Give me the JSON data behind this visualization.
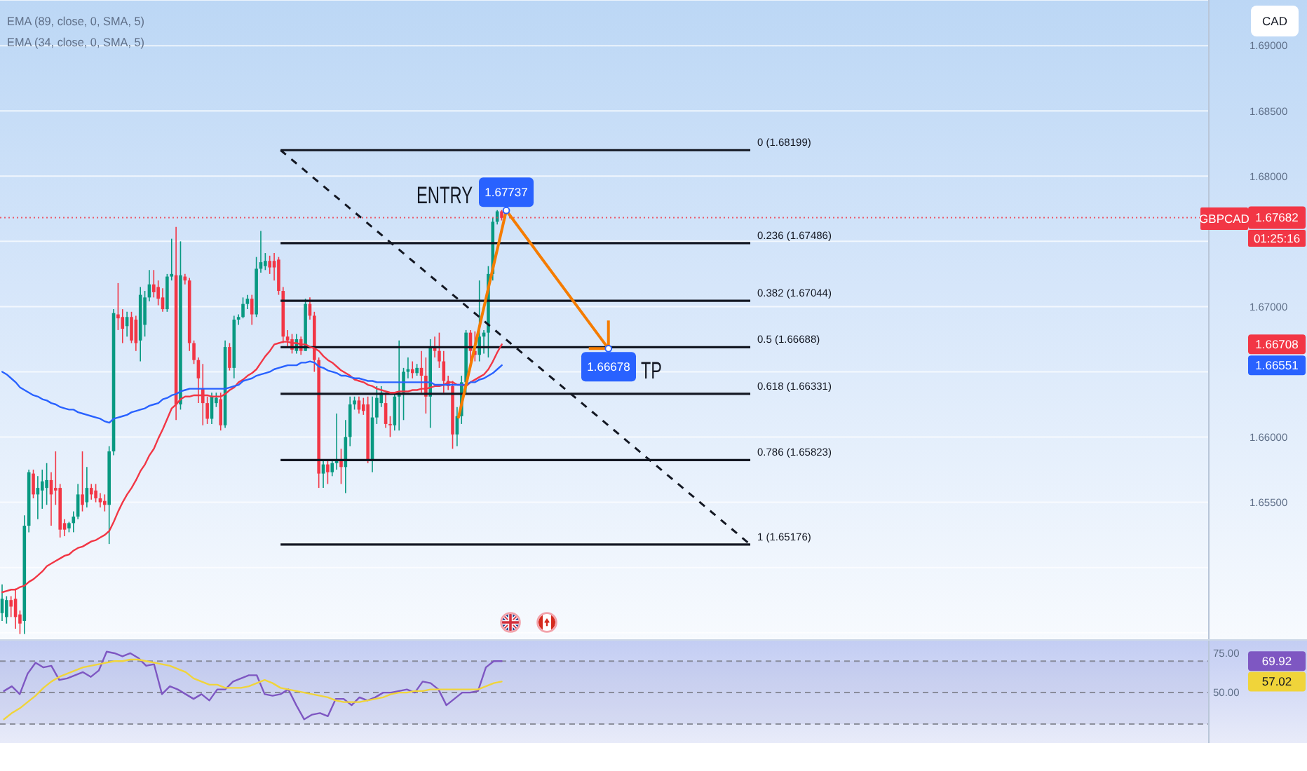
{
  "chart_data": [
    {
      "type": "candlestick",
      "categories": [
        null,
        null,
        null,
        null,
        null,
        null,
        null,
        null,
        null,
        null,
        null,
        null,
        null,
        null,
        null,
        null,
        null,
        null,
        null,
        null,
        null,
        null,
        null,
        null,
        null,
        null,
        null,
        null,
        null,
        null,
        null,
        null,
        null,
        null,
        null,
        null,
        null,
        null,
        null,
        null,
        null,
        null,
        null,
        null,
        null,
        null,
        null,
        null,
        null,
        null,
        null,
        null,
        null,
        null,
        null,
        null,
        null,
        null,
        null,
        null,
        null,
        null,
        null,
        null,
        null,
        null,
        null,
        null,
        null,
        null,
        null,
        null,
        null,
        null,
        null,
        null,
        null,
        null,
        null,
        null,
        null,
        null,
        null,
        null,
        null,
        null,
        null,
        null,
        null,
        null,
        null,
        null,
        null,
        null,
        null,
        null,
        null,
        null,
        null,
        null,
        null,
        null,
        null,
        null,
        null,
        null,
        null,
        null,
        null,
        null,
        null,
        null,
        null,
        null,
        null,
        null,
        null,
        null,
        null,
        null,
        null,
        null,
        null,
        null,
        null,
        null,
        null,
        null,
        null,
        null,
        null,
        null,
        null,
        null,
        null,
        null,
        null,
        null,
        null,
        null,
        null,
        null,
        null,
        null,
        null,
        null,
        null,
        null,
        null,
        null,
        null,
        null,
        null,
        null,
        null,
        null,
        null,
        null,
        null,
        null,
        null,
        null,
        null,
        null,
        null,
        null,
        null,
        null,
        null,
        null,
        null,
        null,
        null,
        null,
        null,
        null,
        null,
        null,
        null,
        null,
        null,
        null,
        null,
        null,
        null,
        null,
        null,
        null,
        null,
        null,
        null,
        null,
        null,
        null,
        null,
        null,
        null,
        null,
        null,
        null,
        null,
        null,
        null,
        null,
        null,
        null,
        null,
        null,
        null,
        null,
        null,
        null,
        null,
        null,
        null,
        null,
        null,
        null,
        null,
        null,
        null,
        null,
        null,
        null,
        null,
        null,
        null,
        null,
        null,
        null,
        null,
        null,
        null,
        null,
        null,
        null,
        null,
        null,
        null,
        null,
        null,
        null,
        null,
        null,
        null,
        null,
        null,
        null,
        null,
        null,
        null,
        null,
        null,
        null,
        null,
        null,
        null,
        null,
        null,
        null,
        null,
        null,
        null,
        null,
        null,
        null,
        null,
        null,
        null,
        null,
        null
      ],
      "ohlc": [
        [
          1.6465,
          1.6487,
          1.6459,
          1.6476
        ],
        [
          1.6462,
          1.6478,
          1.6457,
          1.6475
        ],
        [
          1.6475,
          1.6478,
          1.6462,
          1.647
        ],
        [
          1.6476,
          1.6484,
          1.6453,
          1.6462
        ],
        [
          1.6464,
          1.6467,
          1.6449,
          1.6457
        ],
        [
          1.6459,
          1.654,
          1.6449,
          1.6532
        ],
        [
          1.6532,
          1.6575,
          1.6527,
          1.6573
        ],
        [
          1.6572,
          1.6575,
          1.6553,
          1.6556
        ],
        [
          1.6556,
          1.657,
          1.6537,
          1.6561
        ],
        [
          1.6559,
          1.6575,
          1.6545,
          1.6566
        ],
        [
          1.6561,
          1.658,
          1.6548,
          1.6567
        ],
        [
          1.6567,
          1.6573,
          1.6532,
          1.6556
        ],
        [
          1.6561,
          1.6589,
          1.6548,
          1.6559
        ],
        [
          1.6561,
          1.6564,
          1.6523,
          1.6529
        ],
        [
          1.6534,
          1.6537,
          1.6524,
          1.6529
        ],
        [
          1.653,
          1.6535,
          1.6527,
          1.6534
        ],
        [
          1.6534,
          1.6543,
          1.6527,
          1.6539
        ],
        [
          1.6539,
          1.6564,
          1.6537,
          1.6556
        ],
        [
          1.6556,
          1.6589,
          1.6543,
          1.6548
        ],
        [
          1.655,
          1.6577,
          1.6546,
          1.6561
        ],
        [
          1.6561,
          1.6564,
          1.6552,
          1.6556
        ],
        [
          1.6559,
          1.6564,
          1.655,
          1.6553
        ],
        [
          1.6553,
          1.6557,
          1.6546,
          1.655
        ],
        [
          1.6551,
          1.6556,
          1.6543,
          1.6548
        ],
        [
          1.6548,
          1.6593,
          1.6518,
          1.6589
        ],
        [
          1.6589,
          1.6698,
          1.6586,
          1.6695
        ],
        [
          1.6694,
          1.6718,
          1.6682,
          1.6691
        ],
        [
          1.6692,
          1.6698,
          1.6672,
          1.6683
        ],
        [
          1.6685,
          1.6696,
          1.6677,
          1.6692
        ],
        [
          1.6692,
          1.6696,
          1.6672,
          1.6674
        ],
        [
          1.669,
          1.6693,
          1.6666,
          1.6672
        ],
        [
          1.6674,
          1.6715,
          1.6658,
          1.6709
        ],
        [
          1.6686,
          1.6712,
          1.6677,
          1.6707
        ],
        [
          1.6707,
          1.6728,
          1.6704,
          1.6717
        ],
        [
          1.6717,
          1.6728,
          1.6707,
          1.6711
        ],
        [
          1.6715,
          1.672,
          1.6701,
          1.6706
        ],
        [
          1.6707,
          1.6714,
          1.6696,
          1.6698
        ],
        [
          1.6698,
          1.6725,
          1.6696,
          1.6723
        ],
        [
          1.6723,
          1.6752,
          1.672,
          1.6725
        ],
        [
          1.6724,
          1.6761,
          1.6613,
          1.6625
        ],
        [
          1.6625,
          1.675,
          1.6621,
          1.6724
        ],
        [
          1.6723,
          1.6725,
          1.6717,
          1.672
        ],
        [
          1.672,
          1.6722,
          1.6666,
          1.6672
        ],
        [
          1.6672,
          1.6674,
          1.6656,
          1.6659
        ],
        [
          1.6659,
          1.6661,
          1.6626,
          1.6645
        ],
        [
          1.6637,
          1.6656,
          1.6609,
          1.6626
        ],
        [
          1.6626,
          1.6631,
          1.661,
          1.6614
        ],
        [
          1.6614,
          1.6634,
          1.661,
          1.6631
        ],
        [
          1.6626,
          1.6634,
          1.6623,
          1.663
        ],
        [
          1.6629,
          1.6634,
          1.6605,
          1.6609
        ],
        [
          1.6609,
          1.6674,
          1.6607,
          1.6669
        ],
        [
          1.6669,
          1.6672,
          1.6651,
          1.6653
        ],
        [
          1.6653,
          1.6693,
          1.6645,
          1.669
        ],
        [
          1.669,
          1.6694,
          1.6686,
          1.6692
        ],
        [
          1.6692,
          1.6707,
          1.6691,
          1.6702
        ],
        [
          1.6702,
          1.6709,
          1.6698,
          1.6706
        ],
        [
          1.6706,
          1.6709,
          1.6686,
          1.6694
        ],
        [
          1.6694,
          1.6738,
          1.6692,
          1.6729
        ],
        [
          1.6729,
          1.6758,
          1.6726,
          1.6734
        ],
        [
          1.6731,
          1.6741,
          1.6728,
          1.6735
        ],
        [
          1.6735,
          1.6739,
          1.6725,
          1.673
        ],
        [
          1.6735,
          1.6741,
          1.672,
          1.673
        ],
        [
          1.6736,
          1.6738,
          1.6709,
          1.6712
        ],
        [
          1.6712,
          1.6715,
          1.6672,
          1.6677
        ],
        [
          1.6677,
          1.6682,
          1.6669,
          1.6674
        ],
        [
          1.6675,
          1.6679,
          1.6664,
          1.6667
        ],
        [
          1.6666,
          1.6679,
          1.6664,
          1.6675
        ],
        [
          1.6675,
          1.6677,
          1.6663,
          1.6666
        ],
        [
          1.6666,
          1.6706,
          1.6666,
          1.6702
        ],
        [
          1.6702,
          1.6707,
          1.669,
          1.6693
        ],
        [
          1.6693,
          1.6696,
          1.665,
          1.6659
        ],
        [
          1.6659,
          1.6661,
          1.6561,
          1.6572
        ],
        [
          1.6572,
          1.6583,
          1.6561,
          1.6579
        ],
        [
          1.6579,
          1.6582,
          1.6564,
          1.6573
        ],
        [
          1.6573,
          1.6582,
          1.657,
          1.658
        ],
        [
          1.658,
          1.6618,
          1.6575,
          1.6583
        ],
        [
          1.6582,
          1.6591,
          1.6564,
          1.6577
        ],
        [
          1.6577,
          1.6613,
          1.6557,
          1.66
        ],
        [
          1.66,
          1.6631,
          1.6593,
          1.6625
        ],
        [
          1.6625,
          1.6631,
          1.6621,
          1.6628
        ],
        [
          1.6628,
          1.6631,
          1.6618,
          1.6621
        ],
        [
          1.6625,
          1.663,
          1.6617,
          1.662
        ],
        [
          1.6625,
          1.6631,
          1.658,
          1.6582
        ],
        [
          1.6582,
          1.6631,
          1.6573,
          1.6615
        ],
        [
          1.6615,
          1.6639,
          1.661,
          1.663
        ],
        [
          1.6626,
          1.6639,
          1.6623,
          1.6634
        ],
        [
          1.6626,
          1.6634,
          1.6607,
          1.661
        ],
        [
          1.661,
          1.6616,
          1.66,
          1.6609
        ],
        [
          1.6609,
          1.6634,
          1.6605,
          1.6631
        ],
        [
          1.6631,
          1.6674,
          1.6605,
          1.6634
        ],
        [
          1.6634,
          1.6653,
          1.6613,
          1.665
        ],
        [
          1.665,
          1.6661,
          1.6645,
          1.6652
        ],
        [
          1.6652,
          1.6658,
          1.6645,
          1.6649
        ],
        [
          1.6649,
          1.6656,
          1.6647,
          1.6653
        ],
        [
          1.6653,
          1.6666,
          1.6634,
          1.6647
        ],
        [
          1.6647,
          1.6661,
          1.6618,
          1.6631
        ],
        [
          1.6631,
          1.6675,
          1.6607,
          1.6669
        ],
        [
          1.6669,
          1.6677,
          1.6661,
          1.6666
        ],
        [
          1.6666,
          1.668,
          1.6653,
          1.6658
        ],
        [
          1.6658,
          1.6666,
          1.6634,
          1.6643
        ],
        [
          1.6643,
          1.6647,
          1.6636,
          1.6639
        ],
        [
          1.6639,
          1.6643,
          1.6591,
          1.6602
        ],
        [
          1.6602,
          1.6623,
          1.6593,
          1.6616
        ],
        [
          1.6616,
          1.6647,
          1.661,
          1.6642
        ],
        [
          1.6642,
          1.6682,
          1.6634,
          1.668
        ],
        [
          1.668,
          1.6682,
          1.6658,
          1.6666
        ],
        [
          1.6666,
          1.6681,
          1.6658,
          1.6663
        ],
        [
          1.6663,
          1.672,
          1.6658,
          1.6677
        ],
        [
          1.6677,
          1.6682,
          1.6664,
          1.668
        ],
        [
          1.668,
          1.6731,
          1.6661,
          1.6725
        ],
        [
          1.6725,
          1.6768,
          1.672,
          1.6765
        ],
        [
          1.6765,
          1.6774,
          1.6763,
          1.6773
        ],
        [
          1.6773,
          1.6774,
          1.6766,
          1.6768
        ],
        null,
        null,
        null,
        null,
        null,
        null,
        null,
        null,
        null,
        null,
        null,
        null,
        null,
        null,
        null,
        null,
        null,
        null,
        null,
        null,
        null,
        null,
        null,
        null,
        null,
        null,
        null,
        null,
        null,
        null,
        null,
        null,
        null,
        null,
        null,
        null,
        null,
        null,
        null,
        null,
        null,
        null,
        null,
        null,
        null,
        null,
        null,
        null,
        null,
        null,
        null,
        null,
        null,
        null,
        null,
        null,
        null,
        null,
        null,
        null,
        null,
        null,
        null,
        null,
        null,
        null,
        null,
        null,
        null,
        null,
        null,
        null,
        null,
        null,
        null,
        null,
        null,
        null,
        null,
        null,
        null,
        null,
        null,
        null,
        null,
        null,
        null,
        null,
        null,
        null,
        null,
        null,
        null,
        null,
        null,
        null,
        null,
        null,
        null,
        null,
        null,
        null,
        null,
        null,
        null,
        null,
        null,
        null,
        null,
        null,
        null,
        null,
        null,
        null,
        null,
        null,
        null,
        null,
        null,
        null,
        null,
        null,
        null,
        null,
        null,
        null,
        null,
        null,
        null,
        null,
        null,
        null,
        null,
        null,
        null,
        null,
        null,
        null,
        null,
        null,
        null,
        null,
        null,
        null,
        null,
        null,
        null,
        null,
        null,
        null,
        null,
        null,
        null,
        null,
        null,
        null,
        null,
        null
      ],
      "series": [
        {
          "type": "line",
          "color": "#f23645",
          "values": [
            1.6481,
            1.6482,
            1.6483,
            1.6483,
            1.6485,
            1.6486,
            1.6489,
            1.6491,
            1.6494,
            1.6497,
            1.6501,
            1.6503,
            1.6505,
            1.6507,
            1.6509,
            1.651,
            1.6513,
            1.6515,
            1.6516,
            1.6518,
            1.652,
            1.6521,
            1.6523,
            1.6525,
            1.6528,
            1.6535,
            1.6543,
            1.655,
            1.6556,
            1.6561,
            1.6567,
            1.6574,
            1.6579,
            1.6586,
            1.6591,
            1.6599,
            1.6606,
            1.6614,
            1.6622,
            1.6625,
            1.6629,
            1.6631,
            1.6631,
            1.6632,
            1.6632,
            1.6632,
            1.6632,
            1.6631,
            1.6631,
            1.6631,
            1.6633,
            1.6636,
            1.6638,
            1.6642,
            1.6644,
            1.6647,
            1.6649,
            1.6652,
            1.6657,
            1.6662,
            1.6666,
            1.6671,
            1.6672,
            1.6673,
            1.6673,
            1.6672,
            1.6672,
            1.6671,
            1.6671,
            1.6669,
            1.6668,
            1.6666,
            1.6662,
            1.6659,
            1.6657,
            1.6654,
            1.6651,
            1.6649,
            1.6647,
            1.6644,
            1.6643,
            1.6642,
            1.664,
            1.6639,
            1.6637,
            1.6636,
            1.6635,
            1.6634,
            1.6634,
            1.6635,
            1.6635,
            1.6635,
            1.6636,
            1.6636,
            1.6637,
            1.6637,
            1.6638,
            1.6639,
            1.6639,
            1.664,
            1.6642,
            1.6642,
            1.664,
            1.664,
            1.6639,
            1.6642,
            1.6644,
            1.6646,
            1.6648,
            1.6652,
            1.6658,
            1.6665,
            1.6671,
            null,
            null,
            null,
            null,
            null,
            null,
            null,
            null,
            null,
            null,
            null,
            null,
            null,
            null,
            null,
            null,
            null,
            null,
            null,
            null,
            null,
            null,
            null,
            null,
            null,
            null,
            null,
            null,
            null,
            null,
            null,
            null,
            null,
            null,
            null,
            null,
            null,
            null,
            null,
            null,
            null,
            null,
            null,
            null,
            null,
            null,
            null,
            null,
            null,
            null,
            null,
            null,
            null,
            null,
            null,
            null,
            null,
            null,
            null,
            null,
            null,
            null,
            null,
            null,
            null,
            null,
            null,
            null,
            null,
            null,
            null,
            null,
            null,
            null,
            null,
            null,
            null,
            null,
            null,
            null,
            null,
            null,
            null,
            null,
            null,
            null,
            null,
            null,
            null,
            null,
            null,
            null,
            null,
            null,
            null,
            null,
            null,
            null,
            null,
            null,
            null,
            null,
            null,
            null,
            null,
            null,
            null,
            null,
            null,
            null,
            null,
            null,
            null,
            null,
            null,
            null,
            null,
            null,
            null,
            null,
            null,
            null,
            null,
            null,
            null,
            null,
            null,
            null,
            null,
            null,
            null,
            null,
            null,
            null,
            null,
            null,
            null,
            null,
            null,
            null,
            null,
            null,
            null,
            null,
            null,
            null,
            null,
            null,
            null,
            null,
            null,
            null,
            null,
            null,
            null,
            null,
            null,
            null
          ]
        },
        {
          "type": "line",
          "color": "#2962ff",
          "values": [
            1.665,
            1.6648,
            1.6645,
            1.6642,
            1.6638,
            1.6636,
            1.6634,
            1.6632,
            1.6631,
            1.6629,
            1.6628,
            1.6626,
            1.6625,
            1.6623,
            1.6622,
            1.6621,
            1.6621,
            1.6619,
            1.6618,
            1.6617,
            1.6616,
            1.6615,
            1.6614,
            1.6612,
            1.6611,
            1.6614,
            1.6615,
            1.6616,
            1.6617,
            1.6619,
            1.662,
            1.6621,
            1.6622,
            1.6624,
            1.6625,
            1.6626,
            1.6629,
            1.663,
            1.6632,
            1.6633,
            1.6635,
            1.6636,
            1.6637,
            1.6637,
            1.6637,
            1.6637,
            1.6637,
            1.6637,
            1.6637,
            1.6637,
            1.6637,
            1.6638,
            1.6639,
            1.664,
            1.6643,
            1.6644,
            1.6645,
            1.6647,
            1.6648,
            1.6649,
            1.665,
            1.6652,
            1.6653,
            1.6654,
            1.6655,
            1.6655,
            1.6655,
            1.6657,
            1.6657,
            1.6658,
            1.6657,
            1.6654,
            1.6653,
            1.6651,
            1.665,
            1.6649,
            1.6647,
            1.6647,
            1.6646,
            1.6645,
            1.6645,
            1.6644,
            1.6643,
            1.6643,
            1.6642,
            1.6642,
            1.6642,
            1.6642,
            1.6642,
            1.6642,
            1.6642,
            1.6642,
            1.6642,
            1.6642,
            1.6642,
            1.6642,
            1.6642,
            1.664,
            1.664,
            1.664,
            1.664,
            1.664,
            1.664,
            1.664,
            1.664,
            1.6642,
            1.6642,
            1.6644,
            1.6645,
            1.6647,
            1.6649,
            1.6652,
            1.6655,
            null,
            null,
            null,
            null,
            null,
            null,
            null,
            null,
            null,
            null,
            null,
            null,
            null,
            null,
            null,
            null,
            null,
            null,
            null,
            null,
            null,
            null,
            null,
            null,
            null,
            null,
            null,
            null,
            null,
            null,
            null,
            null,
            null,
            null,
            null,
            null,
            null,
            null,
            null,
            null,
            null,
            null,
            null,
            null,
            null,
            null,
            null,
            null,
            null,
            null,
            null,
            null,
            null,
            null,
            null,
            null,
            null,
            null,
            null,
            null,
            null,
            null,
            null,
            null,
            null,
            null,
            null,
            null,
            null,
            null,
            null,
            null,
            null,
            null,
            null,
            null,
            null,
            null,
            null,
            null,
            null,
            null,
            null,
            null,
            null,
            null,
            null,
            null,
            null,
            null,
            null,
            null,
            null,
            null,
            null,
            null,
            null,
            null,
            null,
            null,
            null,
            null,
            null,
            null,
            null,
            null,
            null,
            null,
            null,
            null,
            null,
            null,
            null,
            null,
            null,
            null,
            null,
            null,
            null,
            null,
            null,
            null,
            null,
            null,
            null,
            null,
            null,
            null,
            null,
            null,
            null,
            null,
            null,
            null,
            null,
            null,
            null,
            null,
            null,
            null,
            null,
            null,
            null,
            null,
            null,
            null,
            null,
            null,
            null,
            null,
            null,
            null,
            null,
            null,
            null,
            null,
            null,
            null
          ]
        }
      ],
      "ylim": [
        1.6445,
        1.6935
      ],
      "yticks": [
        {
          "value": 1.69,
          "label": "1.69000"
        },
        {
          "value": 1.685,
          "label": "1.68500"
        },
        {
          "value": 1.68,
          "label": "1.68000"
        },
        {
          "value": 1.675,
          "label": null
        },
        {
          "value": 1.67,
          "label": "1.67000"
        },
        {
          "value": 1.665,
          "label": null
        },
        {
          "value": 1.66,
          "label": "1.66000"
        },
        {
          "value": 1.655,
          "label": "1.65500"
        },
        {
          "value": 1.65,
          "label": null
        },
        {
          "value": 1.645,
          "label": null
        }
      ],
      "grid": "y",
      "tick_labels": "y",
      "ref_lines": [
        {
          "axis": "y",
          "value": 1.68199,
          "label": "0 (1.68199)",
          "color": "#131722"
        },
        {
          "axis": "y",
          "value": 1.67486,
          "label": "0.236 (1.67486)",
          "color": "#131722"
        },
        {
          "axis": "y",
          "value": 1.67044,
          "label": "0.382 (1.67044)",
          "color": "#131722"
        },
        {
          "axis": "y",
          "value": 1.66688,
          "label": "0.5 (1.66688)",
          "color": "#131722"
        },
        {
          "axis": "y",
          "value": 1.66331,
          "label": "0.618 (1.66331)",
          "color": "#131722"
        },
        {
          "axis": "y",
          "value": 1.65823,
          "label": "0.786 (1.65823)",
          "color": "#131722"
        },
        {
          "axis": "y",
          "value": 1.65176,
          "label": "1 (1.65176)",
          "color": "#131722"
        },
        {
          "axis": "y",
          "value": 1.67682,
          "label": "1.67682",
          "color": "#f23645",
          "line_style": "dotted"
        }
      ],
      "annotations": [
        "EMA (89, close, 0, SMA, 5)",
        "EMA (34, close, 0, SMA, 5)",
        "ENTRY",
        {
          "text": "1.67737",
          "y": 1.67737
        },
        "TP",
        {
          "text": "1.66678",
          "y": 1.66678
        },
        "GBPCAD",
        "01:25:16",
        "1.66708",
        "1.66551",
        "CAD"
      ]
    },
    {
      "type": "line",
      "categories": [
        null,
        null,
        null,
        null,
        null,
        null,
        null,
        null,
        null,
        null,
        null,
        null,
        null,
        null,
        null,
        null,
        null,
        null,
        null,
        null,
        null,
        null,
        null,
        null,
        null,
        null,
        null,
        null,
        null,
        null,
        null,
        null,
        null,
        null,
        null,
        null,
        null,
        null,
        null,
        null,
        null,
        null,
        null,
        null,
        null,
        null,
        null,
        null,
        null,
        null,
        null,
        null,
        null,
        null,
        null,
        null,
        null,
        null,
        null,
        null,
        null,
        null,
        null,
        null,
        null,
        null,
        null,
        null,
        null,
        null,
        null,
        null,
        null,
        null,
        null,
        null,
        null,
        null,
        null,
        null,
        null,
        null,
        null,
        null,
        null,
        null,
        null,
        null,
        null,
        null,
        null,
        null,
        null,
        null,
        null,
        null,
        null,
        null,
        null,
        null,
        null,
        null,
        null,
        null,
        null,
        null,
        null,
        null,
        null,
        null,
        null,
        null,
        null,
        null,
        null,
        null,
        null,
        null,
        null,
        null,
        null,
        null,
        null,
        null,
        null,
        null,
        null,
        null,
        null,
        null,
        null,
        null,
        null,
        null,
        null,
        null,
        null,
        null,
        null,
        null,
        null,
        null,
        null,
        null,
        null,
        null,
        null,
        null,
        null,
        null,
        null,
        null,
        null
      ],
      "series": [
        {
          "color": "#7e57c2",
          "values": [
            51,
            54,
            49,
            62,
            69,
            66,
            67,
            58,
            59,
            61,
            63,
            60,
            64,
            76,
            75,
            73,
            75,
            72,
            67,
            68,
            49,
            54,
            52,
            49,
            46,
            49,
            45,
            52,
            52,
            57,
            59,
            61,
            61,
            49,
            48,
            49,
            52,
            42,
            33,
            36,
            37,
            35,
            46,
            46,
            42,
            47,
            45,
            47,
            50,
            50,
            51,
            52,
            50,
            57,
            56,
            52,
            42,
            46,
            50,
            50,
            51,
            66,
            70,
            70,
            null,
            null,
            null,
            null,
            null,
            null,
            null,
            null,
            null,
            null,
            null,
            null,
            null,
            null,
            null,
            null,
            null,
            null,
            null,
            null,
            null,
            null,
            null,
            null,
            null,
            null,
            null,
            null,
            null,
            null,
            null,
            null,
            null,
            null,
            null,
            null,
            null,
            null,
            null,
            null,
            null,
            null,
            null,
            null,
            null,
            null,
            null,
            null,
            null,
            null,
            null,
            null,
            null,
            null,
            null,
            null,
            null,
            null,
            null,
            null,
            null,
            null,
            null,
            null,
            null,
            null,
            null,
            null,
            null,
            null,
            null,
            null,
            null,
            null,
            null,
            null,
            null,
            null,
            null,
            null,
            null,
            null,
            null,
            null,
            null,
            null,
            null,
            null,
            null
          ]
        },
        {
          "color": "#f0d43a",
          "values": [
            33,
            37,
            40,
            44,
            48,
            53,
            57,
            60,
            62,
            64,
            66,
            67,
            68,
            69,
            70,
            70,
            71,
            71,
            70,
            69,
            68,
            67,
            65,
            63,
            59,
            57,
            55,
            55,
            53,
            53,
            53,
            54,
            56,
            58,
            56,
            53,
            52,
            51,
            50,
            49,
            48,
            47,
            45,
            44,
            44,
            44,
            45,
            46,
            47,
            49,
            50,
            50,
            51,
            51,
            52,
            52,
            52,
            52,
            52,
            52,
            52,
            54,
            56,
            57,
            null,
            null,
            null,
            null,
            null,
            null,
            null,
            null,
            null,
            null,
            null,
            null,
            null,
            null,
            null,
            null,
            null,
            null,
            null,
            null,
            null,
            null,
            null,
            null,
            null,
            null,
            null,
            null,
            null,
            null,
            null,
            null,
            null,
            null,
            null,
            null,
            null,
            null,
            null,
            null,
            null,
            null,
            null,
            null,
            null,
            null,
            null,
            null,
            null,
            null,
            null,
            null,
            null,
            null,
            null,
            null,
            null,
            null,
            null,
            null,
            null,
            null,
            null,
            null,
            null,
            null,
            null,
            null,
            null,
            null,
            null,
            null,
            null,
            null,
            null,
            null,
            null,
            null,
            null,
            null,
            null,
            null,
            null,
            null,
            null,
            null,
            null,
            null,
            null
          ]
        }
      ],
      "ylim": [
        18,
        83
      ],
      "yticks": [
        {
          "value": 75,
          "label": "75.00"
        },
        {
          "value": 50,
          "label": "50.00"
        }
      ],
      "ref_lines": [
        {
          "axis": "y",
          "value": 70,
          "color": "#787b86",
          "line_style": "dashed"
        },
        {
          "axis": "y",
          "value": 50,
          "color": "#787b86",
          "line_style": "dashed"
        },
        {
          "axis": "y",
          "value": 30,
          "color": "#787b86",
          "line_style": "dashed"
        }
      ],
      "bands": [
        {
          "axis": "y",
          "from": 30,
          "to": 70,
          "color": "#9fa8da"
        }
      ],
      "annotations": [
        "69.92",
        "57.02"
      ]
    }
  ]
}
